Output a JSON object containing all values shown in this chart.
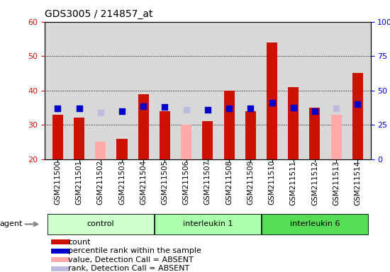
{
  "title": "GDS3005 / 214857_at",
  "samples": [
    "GSM211500",
    "GSM211501",
    "GSM211502",
    "GSM211503",
    "GSM211504",
    "GSM211505",
    "GSM211506",
    "GSM211507",
    "GSM211508",
    "GSM211509",
    "GSM211510",
    "GSM211511",
    "GSM211512",
    "GSM211513",
    "GSM211514"
  ],
  "count_values": [
    33,
    32,
    null,
    26,
    39,
    34,
    null,
    31,
    40,
    34,
    54,
    41,
    35,
    null,
    45
  ],
  "rank_values": [
    37,
    37,
    null,
    35,
    38.5,
    38,
    null,
    36,
    37,
    37,
    41,
    37.5,
    35,
    null,
    40
  ],
  "absent_count": [
    null,
    null,
    25,
    null,
    null,
    null,
    30,
    null,
    null,
    null,
    null,
    null,
    null,
    33,
    null
  ],
  "absent_rank": [
    null,
    null,
    34,
    null,
    null,
    null,
    36,
    null,
    null,
    null,
    null,
    null,
    null,
    37,
    null
  ],
  "groups": [
    {
      "label": "control",
      "start": 0,
      "end": 4,
      "color": "#ccffcc"
    },
    {
      "label": "interleukin 1",
      "start": 5,
      "end": 9,
      "color": "#aaffaa"
    },
    {
      "label": "interleukin 6",
      "start": 10,
      "end": 14,
      "color": "#55dd55"
    }
  ],
  "ylim_left": [
    20,
    60
  ],
  "ylim_right": [
    0,
    100
  ],
  "yticks_left": [
    20,
    30,
    40,
    50,
    60
  ],
  "yticks_right": [
    0,
    25,
    50,
    75,
    100
  ],
  "color_count": "#cc1100",
  "color_rank": "#0000cc",
  "color_absent_count": "#ffaaaa",
  "color_absent_rank": "#bbbbdd",
  "background_plot": "#d8d8d8",
  "background_fig": "#ffffff",
  "bar_width": 0.5,
  "marker_size": 28
}
